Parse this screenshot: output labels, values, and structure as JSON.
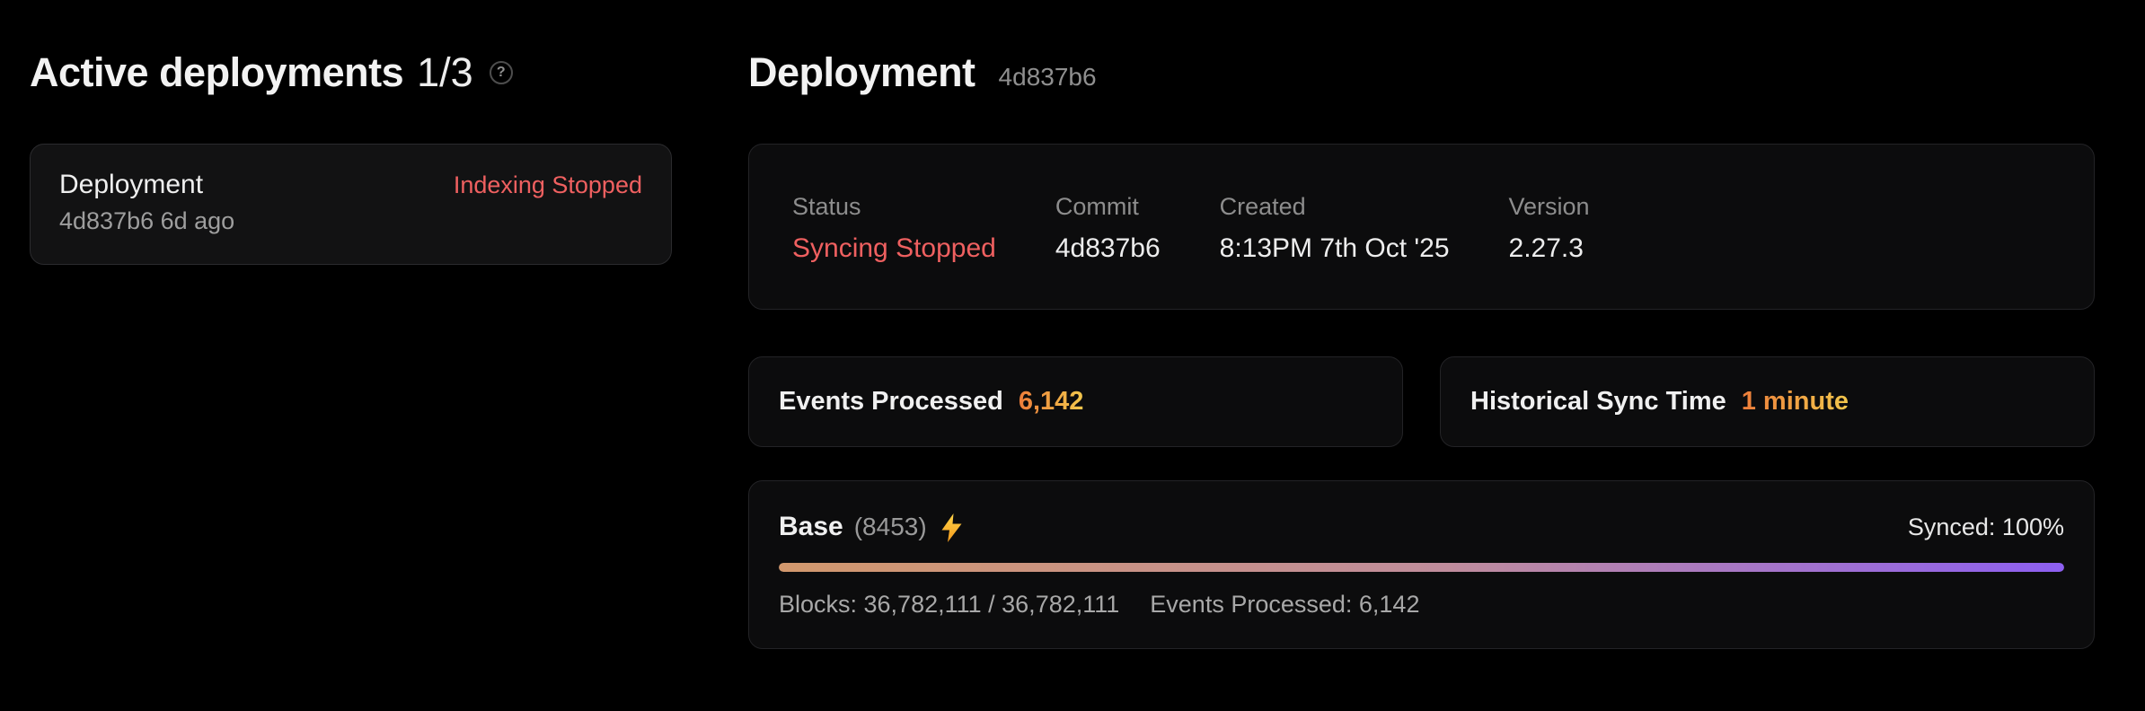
{
  "left_panel": {
    "title": "Active deployments",
    "count": "1/3",
    "deployment_card": {
      "name": "Deployment",
      "status": "Indexing Stopped",
      "meta": "4d837b6 6d ago"
    }
  },
  "main_panel": {
    "title": "Deployment",
    "hash": "4d837b6",
    "overview": {
      "columns": [
        {
          "label": "Status",
          "value": "Syncing Stopped"
        },
        {
          "label": "Commit",
          "value": "4d837b6"
        },
        {
          "label": "Created",
          "value": "8:13PM 7th Oct '25"
        },
        {
          "label": "Version",
          "value": "2.27.3"
        }
      ]
    },
    "stats": [
      {
        "label": "Events Processed",
        "value": "6,142"
      },
      {
        "label": "Historical Sync Time",
        "value": "1 minute"
      }
    ],
    "chain": {
      "name": "Base",
      "chain_id": "(8453)",
      "synced_label": "Synced: 100%",
      "progress_percent": 100,
      "blocks_label": "Blocks: 36,782,111 / 36,782,111",
      "events_label": "Events Processed: 6,142"
    }
  },
  "icons": {
    "help_glyph": "?",
    "lightning": "lightning-bolt"
  },
  "colors": {
    "status_red": "#ef6060",
    "amber_gradient_start": "#ed7d3a",
    "amber_gradient_end": "#f3c74c",
    "bar_gradient_start": "#d2986d",
    "bar_gradient_mid": "#c08d9c",
    "bar_gradient_end": "#8d5ff1"
  }
}
